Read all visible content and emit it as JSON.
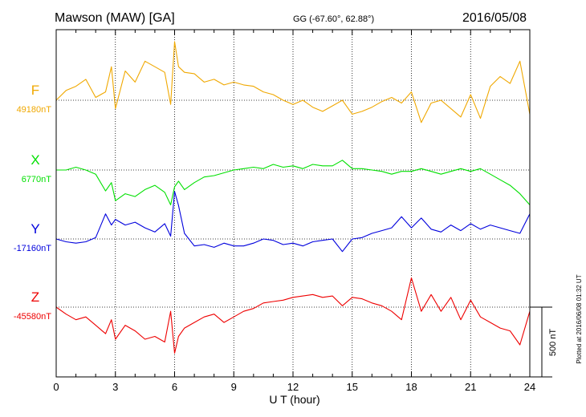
{
  "header": {
    "station": "Mawson (MAW)  [GA]",
    "coords": "GG (-67.60°,  62.88°)",
    "date": "2016/05/08"
  },
  "plotted_note": "Plotted at 2016/06/08 01:32 UT",
  "chart_data": {
    "type": "line",
    "title": "Mawson (MAW)  [GA]",
    "xlabel": "U T (hour)",
    "xlim": [
      0,
      24
    ],
    "x_ticks": [
      0,
      3,
      6,
      9,
      12,
      15,
      18,
      21,
      24
    ],
    "scale_bar": "500 nT",
    "grid": true,
    "x": [
      0,
      0.5,
      1,
      1.5,
      2,
      2.5,
      2.8,
      3,
      3.5,
      4,
      4.5,
      5,
      5.5,
      5.8,
      6,
      6.2,
      6.5,
      7,
      7.5,
      8,
      8.5,
      9,
      9.5,
      10,
      10.5,
      11,
      11.5,
      12,
      12.5,
      13,
      13.5,
      14,
      14.5,
      15,
      15.5,
      16,
      16.5,
      17,
      17.5,
      18,
      18.5,
      19,
      19.5,
      20,
      20.5,
      21,
      21.5,
      22,
      22.5,
      23,
      23.5,
      24
    ],
    "series": [
      {
        "name": "F",
        "baseline_label": "49180nT",
        "color": "#f0a800",
        "values": [
          49180,
          49250,
          49280,
          49330,
          49200,
          49240,
          49420,
          49120,
          49390,
          49310,
          49460,
          49420,
          49380,
          49150,
          49600,
          49420,
          49380,
          49370,
          49310,
          49330,
          49290,
          49310,
          49290,
          49280,
          49240,
          49220,
          49180,
          49150,
          49180,
          49130,
          49100,
          49140,
          49180,
          49080,
          49100,
          49130,
          49170,
          49200,
          49160,
          49240,
          49020,
          49160,
          49180,
          49120,
          49060,
          49220,
          49050,
          49280,
          49350,
          49300,
          49460,
          49080
        ]
      },
      {
        "name": "X",
        "baseline_label": "6770nT",
        "color": "#00e000",
        "values": [
          6770,
          6770,
          6790,
          6770,
          6740,
          6620,
          6680,
          6550,
          6600,
          6580,
          6630,
          6660,
          6610,
          6520,
          6650,
          6690,
          6630,
          6680,
          6720,
          6730,
          6750,
          6770,
          6780,
          6790,
          6780,
          6810,
          6790,
          6800,
          6780,
          6810,
          6800,
          6800,
          6840,
          6780,
          6780,
          6770,
          6760,
          6740,
          6760,
          6760,
          6780,
          6760,
          6740,
          6760,
          6780,
          6760,
          6780,
          6740,
          6700,
          6660,
          6600,
          6520
        ]
      },
      {
        "name": "Y",
        "baseline_label": "-17160nT",
        "color": "#0000dd",
        "values": [
          -17160,
          -17180,
          -17190,
          -17180,
          -17150,
          -16980,
          -17060,
          -17020,
          -17060,
          -17040,
          -17080,
          -17110,
          -17050,
          -17140,
          -16820,
          -16920,
          -17120,
          -17210,
          -17200,
          -17220,
          -17190,
          -17210,
          -17210,
          -17190,
          -17160,
          -17170,
          -17200,
          -17190,
          -17210,
          -17180,
          -17170,
          -17160,
          -17250,
          -17160,
          -17150,
          -17120,
          -17100,
          -17080,
          -17000,
          -17080,
          -17010,
          -17090,
          -17110,
          -17060,
          -17100,
          -17050,
          -17090,
          -17060,
          -17080,
          -17100,
          -17120,
          -16980
        ]
      },
      {
        "name": "Z",
        "baseline_label": "-45580nT",
        "color": "#ee0000",
        "values": [
          -45530,
          -45580,
          -45620,
          -45600,
          -45660,
          -45720,
          -45620,
          -45760,
          -45660,
          -45700,
          -45760,
          -45740,
          -45780,
          -45560,
          -45860,
          -45740,
          -45680,
          -45640,
          -45600,
          -45580,
          -45640,
          -45600,
          -45560,
          -45540,
          -45500,
          -45490,
          -45480,
          -45460,
          -45450,
          -45440,
          -45460,
          -45450,
          -45520,
          -45460,
          -45470,
          -45500,
          -45520,
          -45560,
          -45620,
          -45320,
          -45560,
          -45440,
          -45560,
          -45460,
          -45620,
          -45480,
          -45600,
          -45640,
          -45680,
          -45700,
          -45800,
          -45560
        ]
      }
    ]
  }
}
